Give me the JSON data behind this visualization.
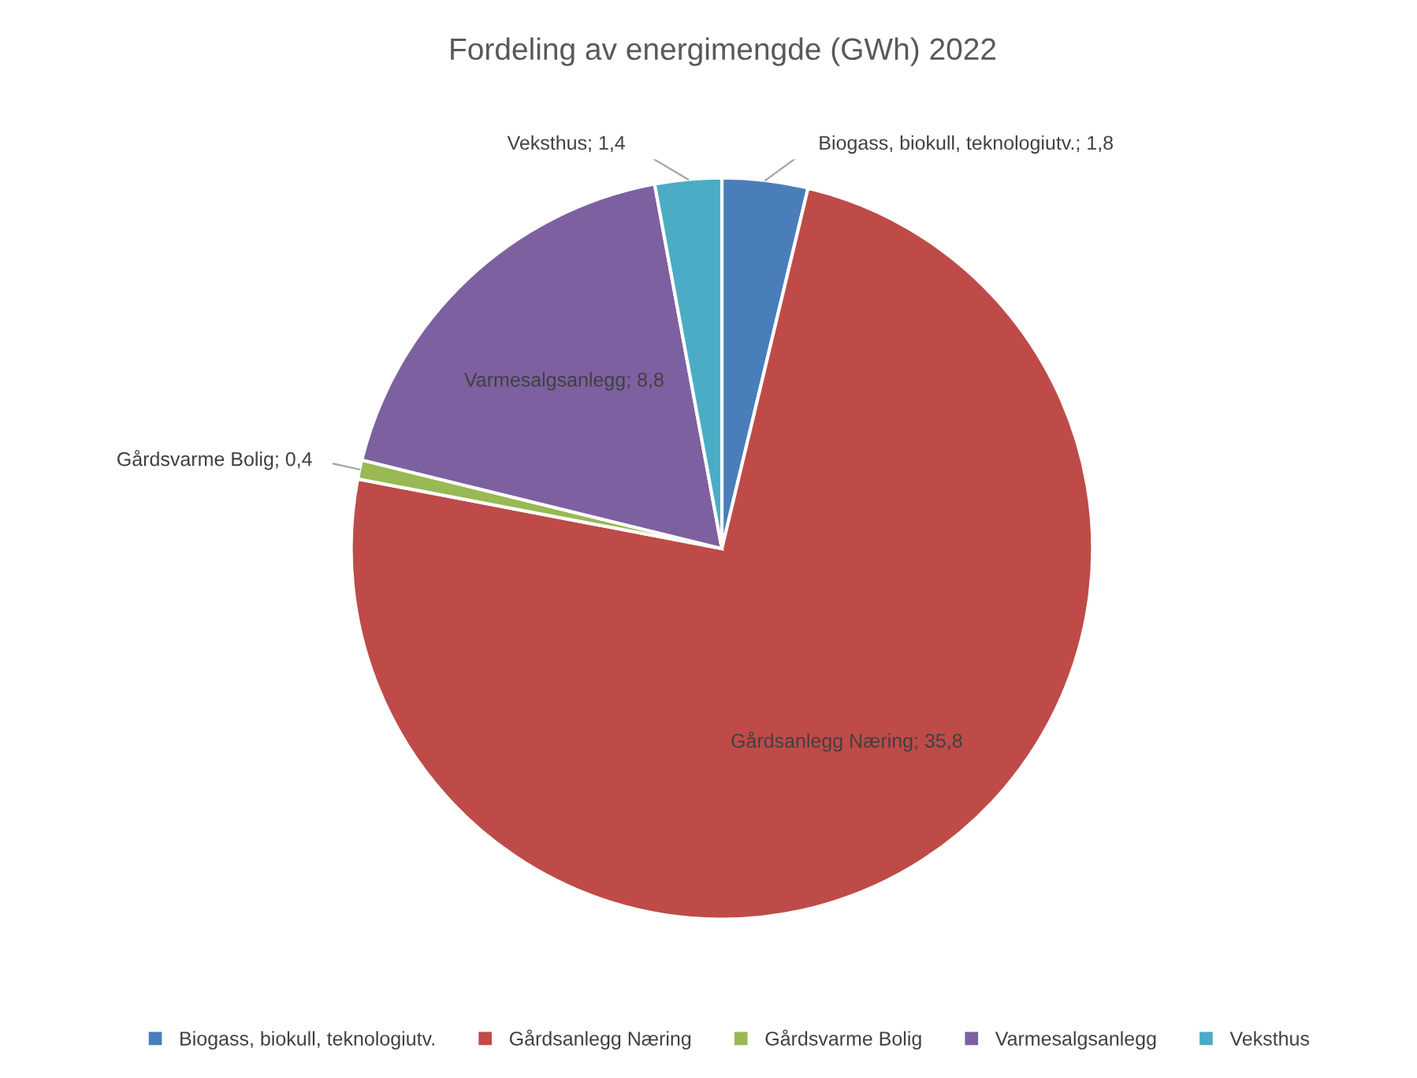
{
  "chart_data": {
    "type": "pie",
    "title": "Fordeling av energimengde (GWh) 2022",
    "categories": [
      "Biogass, biokull, teknologiutv.",
      "Gårdsanlegg Næring",
      "Gårdsvarme Bolig",
      "Varmesalgsanlegg",
      "Veksthus"
    ],
    "values": [
      1.8,
      35.8,
      0.4,
      8.8,
      1.4
    ],
    "value_labels": [
      "Biogass, biokull, teknologiutv.; 1,8",
      "Gårdsanlegg Næring; 35,8",
      "Gårdsvarme Bolig; 0,4",
      "Varmesalgsanlegg; 8,8",
      "Veksthus; 1,4"
    ],
    "colors": [
      "#4a7ebb",
      "#be4b48",
      "#98b954",
      "#7d60a0",
      "#4bacc6"
    ],
    "legend": "bottom"
  }
}
